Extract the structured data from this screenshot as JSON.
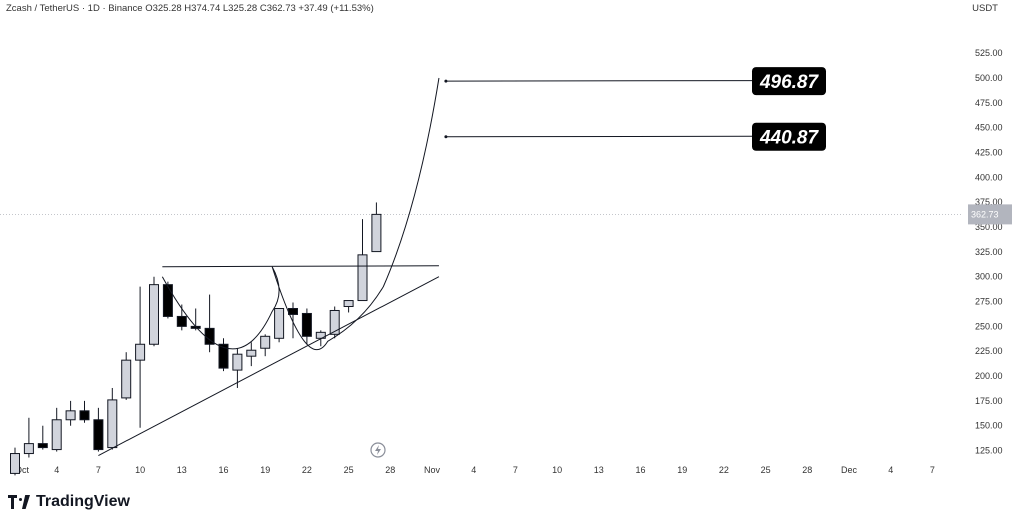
{
  "header": {
    "symbol": "Zcash / TetherUS · 1D · Binance",
    "ohlc": "O325.28 H374.74 L325.28 C362.73 +37.49 (+11.53%)"
  },
  "currency_label": "USDT",
  "brand": "TradingView",
  "colors": {
    "up": "#d1d4dc",
    "down": "#000000",
    "line": "#131722",
    "grid_dot": "#b0b3ba"
  },
  "chart_data": {
    "type": "candlestick",
    "price_range": [
      100,
      545
    ],
    "y_ticks": [
      "525.00",
      "500.00",
      "475.00",
      "450.00",
      "425.00",
      "400.00",
      "375.00",
      "350.00",
      "325.00",
      "300.00",
      "275.00",
      "250.00",
      "225.00",
      "200.00",
      "175.00",
      "150.00",
      "125.00"
    ],
    "last_price_label": "362.73",
    "x_ticks": [
      "Oct",
      "4",
      "7",
      "10",
      "13",
      "16",
      "19",
      "22",
      "25",
      "28",
      "Nov",
      "4",
      "7",
      "10",
      "13",
      "16",
      "19",
      "22",
      "25",
      "28",
      "Dec",
      "4",
      "7"
    ],
    "candles": [
      {
        "o": 102,
        "h": 128,
        "l": 100,
        "c": 122
      },
      {
        "o": 122,
        "h": 158,
        "l": 118,
        "c": 132
      },
      {
        "o": 132,
        "h": 150,
        "l": 126,
        "c": 128
      },
      {
        "o": 126,
        "h": 168,
        "l": 124,
        "c": 156
      },
      {
        "o": 156,
        "h": 175,
        "l": 150,
        "c": 165
      },
      {
        "o": 165,
        "h": 175,
        "l": 153,
        "c": 156
      },
      {
        "o": 156,
        "h": 168,
        "l": 124,
        "c": 126
      },
      {
        "o": 128,
        "h": 188,
        "l": 126,
        "c": 176
      },
      {
        "o": 178,
        "h": 224,
        "l": 176,
        "c": 216
      },
      {
        "o": 216,
        "h": 290,
        "l": 148,
        "c": 232
      },
      {
        "o": 232,
        "h": 300,
        "l": 230,
        "c": 292
      },
      {
        "o": 292,
        "h": 295,
        "l": 258,
        "c": 260
      },
      {
        "o": 260,
        "h": 272,
        "l": 246,
        "c": 250
      },
      {
        "o": 250,
        "h": 268,
        "l": 246,
        "c": 248
      },
      {
        "o": 248,
        "h": 282,
        "l": 224,
        "c": 232
      },
      {
        "o": 232,
        "h": 238,
        "l": 205,
        "c": 208
      },
      {
        "o": 206,
        "h": 228,
        "l": 188,
        "c": 222
      },
      {
        "o": 220,
        "h": 234,
        "l": 210,
        "c": 226
      },
      {
        "o": 228,
        "h": 242,
        "l": 220,
        "c": 240
      },
      {
        "o": 238,
        "h": 268,
        "l": 234,
        "c": 268
      },
      {
        "o": 268,
        "h": 274,
        "l": 238,
        "c": 262
      },
      {
        "o": 263,
        "h": 268,
        "l": 232,
        "c": 240
      },
      {
        "o": 238,
        "h": 246,
        "l": 230,
        "c": 244
      },
      {
        "o": 242,
        "h": 270,
        "l": 238,
        "c": 266
      },
      {
        "o": 270,
        "h": 276,
        "l": 264,
        "c": 276
      },
      {
        "o": 276,
        "h": 358,
        "l": 276,
        "c": 322
      },
      {
        "o": 325.28,
        "h": 374.74,
        "l": 325.28,
        "c": 362.73
      }
    ],
    "resistance_line": {
      "from_day": 10.6,
      "to_day": 30.5,
      "value": 310
    },
    "trend_line": {
      "from": [
        6,
        120
      ],
      "to": [
        30.5,
        300
      ]
    },
    "projection_points": [
      [
        18.5,
        310
      ],
      [
        20,
        280
      ],
      [
        24.5,
        272
      ],
      [
        26.5,
        290
      ],
      [
        28,
        340
      ],
      [
        30.5,
        500
      ]
    ],
    "targets": [
      {
        "label": "496.87",
        "value": 496.87,
        "from_day": 31
      },
      {
        "label": "440.87",
        "value": 440.87,
        "from_day": 31
      }
    ]
  }
}
